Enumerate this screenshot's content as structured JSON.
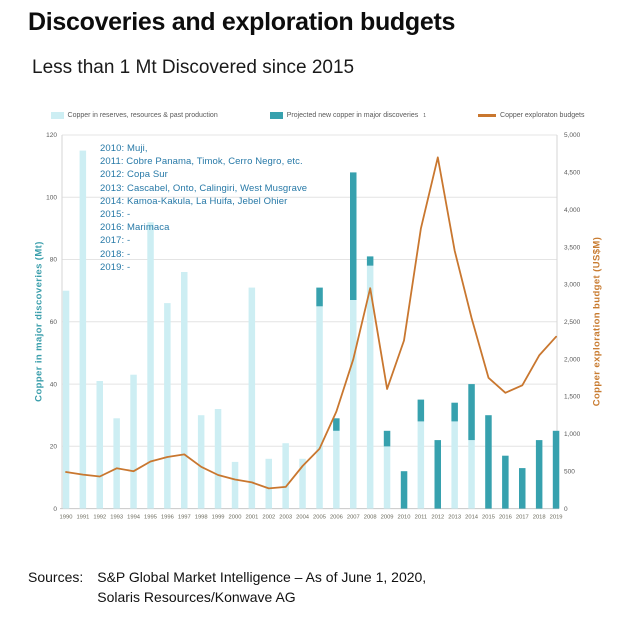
{
  "header": {
    "title": "Discoveries and exploration budgets",
    "subtitle": "Less than 1 Mt Discovered since 2015"
  },
  "footer": {
    "sources_label": "Sources:",
    "line1": "S&P Global Market Intelligence – As of June 1, 2020,",
    "line2": "Solaris Resources/Konwave AG"
  },
  "chart_data": {
    "type": "bar",
    "note": "combo chart: stacked bars on left axis (Mt) + line on right axis (US$M)",
    "categories": [
      "1990",
      "1991",
      "1992",
      "1993",
      "1994",
      "1995",
      "1996",
      "1997",
      "1998",
      "1999",
      "2000",
      "2001",
      "2002",
      "2003",
      "2004",
      "2005",
      "2006",
      "2007",
      "2008",
      "2009",
      "2010",
      "2011",
      "2012",
      "2013",
      "2014",
      "2015",
      "2016",
      "2017",
      "2018",
      "2019"
    ],
    "series": [
      {
        "name": "Copper in reserves, resources & past production",
        "type": "bar",
        "axis": "left",
        "color": "#cdeef3",
        "values": [
          70,
          115,
          41,
          29,
          43,
          92,
          66,
          76,
          30,
          32,
          15,
          71,
          16,
          21,
          16,
          65,
          25,
          67,
          78,
          20,
          0,
          28,
          0,
          28,
          22,
          0,
          0,
          0,
          0,
          0
        ]
      },
      {
        "name": "Projected new copper in major discoveries",
        "type": "bar",
        "axis": "left",
        "color": "#37a1ae",
        "values": [
          0,
          0,
          0,
          0,
          0,
          0,
          0,
          0,
          0,
          0,
          0,
          0,
          0,
          0,
          0,
          6,
          4,
          41,
          3,
          5,
          12,
          7,
          22,
          6,
          18,
          30,
          17,
          13,
          22,
          25
        ]
      },
      {
        "name": "Copper exploraton budgets",
        "type": "line",
        "axis": "right",
        "color": "#c9772f",
        "values": [
          490,
          455,
          430,
          540,
          500,
          630,
          690,
          725,
          560,
          450,
          390,
          350,
          270,
          290,
          570,
          800,
          1300,
          2000,
          2950,
          1600,
          2250,
          3750,
          4700,
          3450,
          2550,
          1750,
          1550,
          1650,
          2050,
          2300
        ]
      }
    ],
    "left_axis": {
      "label": "Copper in major discoveries (Mt)",
      "range": [
        0,
        120
      ],
      "tick_values": [
        0,
        20,
        40,
        60,
        80,
        100,
        120
      ],
      "tick_labels": [
        "0",
        "20",
        "40",
        "60",
        "80",
        "100",
        "120"
      ]
    },
    "right_axis": {
      "label": "Copper exploration budget (US$M)",
      "range": [
        0,
        5000
      ],
      "tick_values": [
        0,
        500,
        1000,
        1500,
        2000,
        2500,
        3000,
        3500,
        4000,
        4500,
        5000
      ],
      "tick_labels": [
        "0",
        "500",
        "1,000",
        "1,500",
        "2,000",
        "2,500",
        "3,000",
        "3,500",
        "4,000",
        "4,500",
        "5,000"
      ]
    },
    "legend": [
      {
        "label": "Copper in reserves, resources & past production",
        "marker": "square",
        "color": "#cdeef3"
      },
      {
        "label": "Projected new copper in major discoveries",
        "sup": "1",
        "marker": "square",
        "color": "#37a1ae"
      },
      {
        "label": "Copper exploraton budgets",
        "marker": "line",
        "color": "#c9772f"
      }
    ],
    "annotation": [
      "2010: Muji,",
      "2011: Cobre Panama, Timok, Cerro Negro, etc.",
      "2012: Copa Sur",
      "2013: Cascabel, Onto, Calingiri, West Musgrave",
      "2014: Kamoa-Kakula, La Huifa, Jebel Ohier",
      "2015: -",
      "2016: Marimaca",
      "2017: -",
      "2018: -",
      "2019: -"
    ],
    "grid": true,
    "legend_position": "top"
  }
}
